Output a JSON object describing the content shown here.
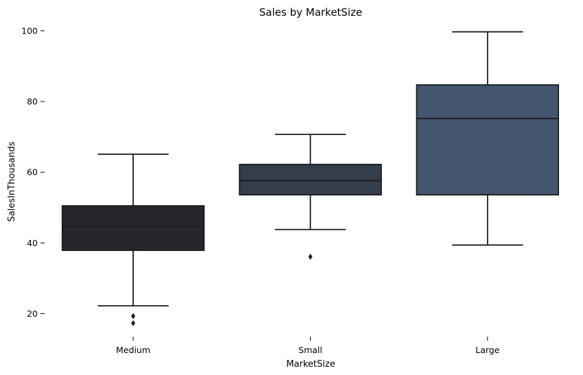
{
  "chart_data": {
    "type": "boxplot",
    "title": "Sales by MarketSize",
    "xlabel": "MarketSize",
    "ylabel": "SalesInThousands",
    "categories": [
      "Medium",
      "Small",
      "Large"
    ],
    "boxes": [
      {
        "category": "Medium",
        "whisker_low": 22.2,
        "q1": 37.9,
        "median": 44.6,
        "q3": 50.5,
        "whisker_high": 65.1,
        "outliers": [
          19.3,
          17.3
        ],
        "color": "#25272D"
      },
      {
        "category": "Small",
        "whisker_low": 43.8,
        "q1": 53.6,
        "median": 57.6,
        "q3": 62.2,
        "whisker_high": 70.7,
        "outliers": [
          36.1
        ],
        "color": "#353C4C"
      },
      {
        "category": "Large",
        "whisker_low": 39.4,
        "q1": 53.6,
        "median": 75.2,
        "q3": 84.7,
        "whisker_high": 99.7,
        "outliers": [],
        "color": "#44566F"
      }
    ],
    "yticks": [
      20,
      40,
      60,
      80,
      100
    ],
    "ylim": [
      13.5,
      102.5
    ],
    "grid": false
  }
}
